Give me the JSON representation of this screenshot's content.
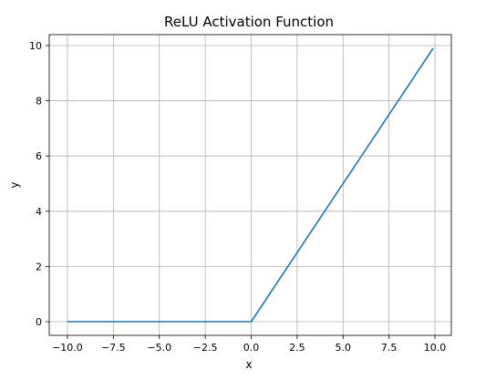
{
  "chart_data": {
    "type": "line",
    "title": "ReLU Activation Function",
    "xlabel": "x",
    "ylabel": "y",
    "xlim": [
      -10.99,
      10.89
    ],
    "ylim": [
      -0.495,
      10.395
    ],
    "xticks": [
      -10.0,
      -7.5,
      -5.0,
      -2.5,
      0.0,
      2.5,
      5.0,
      7.5,
      10.0
    ],
    "xtick_labels": [
      "−10.0",
      "−7.5",
      "−5.0",
      "−2.5",
      "0.0",
      "2.5",
      "5.0",
      "7.5",
      "10.0"
    ],
    "yticks": [
      0,
      2,
      4,
      6,
      8,
      10
    ],
    "ytick_labels": [
      "0",
      "2",
      "4",
      "6",
      "8",
      "10"
    ],
    "grid": true,
    "series": [
      {
        "color": "#1f77b4",
        "x": [
          -10,
          -7.5,
          -5,
          -2.5,
          0,
          2.5,
          5,
          7.5,
          9.9
        ],
        "y": [
          0,
          0,
          0,
          0,
          0,
          2.5,
          5,
          7.5,
          9.9
        ]
      }
    ]
  }
}
